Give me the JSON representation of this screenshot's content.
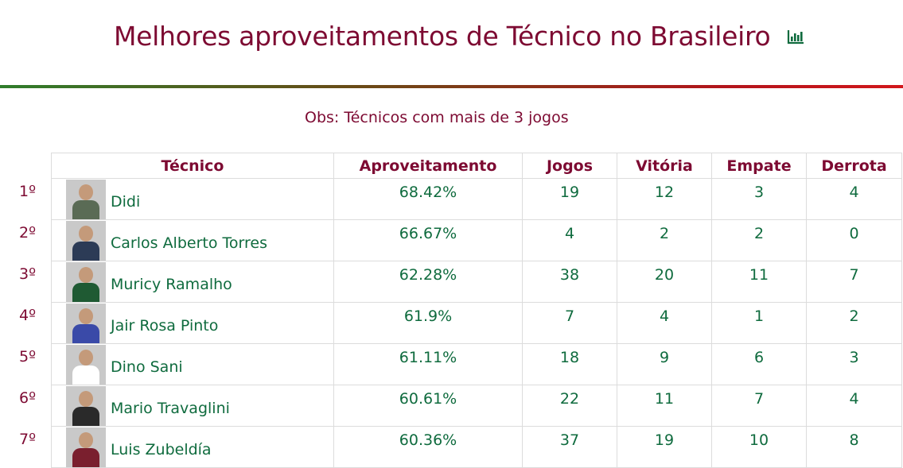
{
  "page": {
    "title": "Melhores aproveitamentos de Técnico no Brasileiro",
    "title_icon": "bar-chart-icon",
    "note": "Obs: Técnicos com mais de 3 jogos"
  },
  "colors": {
    "title": "#7d0a32",
    "values": "#0f6b3e",
    "divider_start": "#2f7d2b",
    "divider_end": "#d2161b"
  },
  "table": {
    "headers": [
      "Técnico",
      "Aproveitamento",
      "Jogos",
      "Vitória",
      "Empate",
      "Derrota"
    ],
    "rows": [
      {
        "pos": "1º",
        "name": "Didi",
        "aproveitamento": "68.42%",
        "jogos": "19",
        "vitoria": "12",
        "empate": "3",
        "derrota": "4",
        "avatar": "coach-photo"
      },
      {
        "pos": "2º",
        "name": "Carlos Alberto Torres",
        "aproveitamento": "66.67%",
        "jogos": "4",
        "vitoria": "2",
        "empate": "2",
        "derrota": "0",
        "avatar": "coach-photo"
      },
      {
        "pos": "3º",
        "name": "Muricy Ramalho",
        "aproveitamento": "62.28%",
        "jogos": "38",
        "vitoria": "20",
        "empate": "11",
        "derrota": "7",
        "avatar": "coach-photo"
      },
      {
        "pos": "4º",
        "name": "Jair Rosa Pinto",
        "aproveitamento": "61.9%",
        "jogos": "7",
        "vitoria": "4",
        "empate": "1",
        "derrota": "2",
        "avatar": "coach-photo"
      },
      {
        "pos": "5º",
        "name": "Dino Sani",
        "aproveitamento": "61.11%",
        "jogos": "18",
        "vitoria": "9",
        "empate": "6",
        "derrota": "3",
        "avatar": "coach-photo"
      },
      {
        "pos": "6º",
        "name": "Mario Travaglini",
        "aproveitamento": "60.61%",
        "jogos": "22",
        "vitoria": "11",
        "empate": "7",
        "derrota": "4",
        "avatar": "coach-photo"
      },
      {
        "pos": "7º",
        "name": "Luis Zubeldía",
        "aproveitamento": "60.36%",
        "jogos": "37",
        "vitoria": "19",
        "empate": "10",
        "derrota": "8",
        "avatar": "coach-photo"
      }
    ]
  }
}
